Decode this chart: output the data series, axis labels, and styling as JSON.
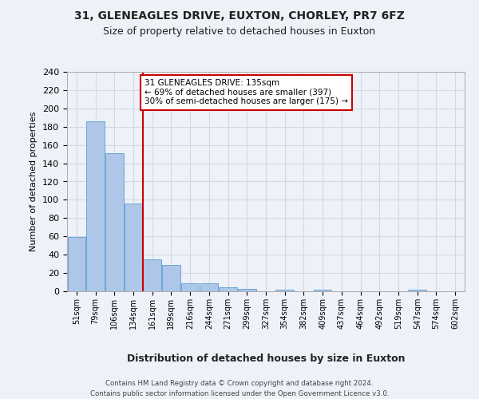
{
  "title1": "31, GLENEAGLES DRIVE, EUXTON, CHORLEY, PR7 6FZ",
  "title2": "Size of property relative to detached houses in Euxton",
  "xlabel": "Distribution of detached houses by size in Euxton",
  "ylabel": "Number of detached properties",
  "bins": [
    "51sqm",
    "79sqm",
    "106sqm",
    "134sqm",
    "161sqm",
    "189sqm",
    "216sqm",
    "244sqm",
    "271sqm",
    "299sqm",
    "327sqm",
    "354sqm",
    "382sqm",
    "409sqm",
    "437sqm",
    "464sqm",
    "492sqm",
    "519sqm",
    "547sqm",
    "574sqm",
    "602sqm"
  ],
  "values": [
    59,
    186,
    151,
    96,
    35,
    29,
    9,
    9,
    4,
    3,
    0,
    2,
    0,
    2,
    0,
    0,
    0,
    0,
    2,
    0,
    0
  ],
  "bar_color": "#aec6e8",
  "bar_edge_color": "#5a9fd4",
  "grid_color": "#d0d8e8",
  "vline_x_idx": 3,
  "vline_color": "#cc0000",
  "annotation_lines": [
    "31 GLENEAGLES DRIVE: 135sqm",
    "← 69% of detached houses are smaller (397)",
    "30% of semi-detached houses are larger (175) →"
  ],
  "annotation_box_color": "#ffffff",
  "annotation_box_edge": "#cc0000",
  "ylim": [
    0,
    240
  ],
  "yticks": [
    0,
    20,
    40,
    60,
    80,
    100,
    120,
    140,
    160,
    180,
    200,
    220,
    240
  ],
  "footer1": "Contains HM Land Registry data © Crown copyright and database right 2024.",
  "footer2": "Contains public sector information licensed under the Open Government Licence v3.0.",
  "bg_color": "#eef1f7"
}
